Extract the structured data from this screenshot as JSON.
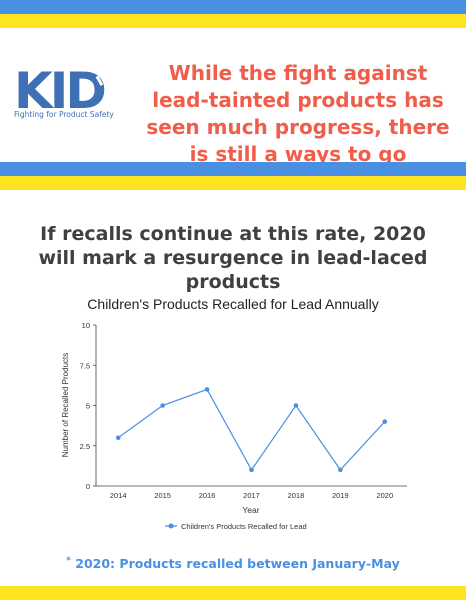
{
  "header": {
    "logo_text": "KID",
    "logo_tagline": "Fighting for Product Safety",
    "headline": "While the fight against lead-tainted products has seen much progress, there is still a ways to go"
  },
  "subheading": "If recalls continue at this rate, 2020 will mark a resurgence in lead-laced products",
  "colors": {
    "blue_band": "#4a90e2",
    "yellow_band": "#fce520",
    "headline": "#f05d4a",
    "series": "#4a90e2"
  },
  "chart_data": {
    "type": "line",
    "title": "Children's Products Recalled for Lead Annually",
    "xlabel": "Year",
    "ylabel": "Number of Recalled Products",
    "x": [
      "2014",
      "2015",
      "2016",
      "2017",
      "2018",
      "2019",
      "2020"
    ],
    "series": [
      {
        "name": "Children's Products Recalled for Lead",
        "values": [
          3,
          5,
          6,
          1,
          5,
          1,
          4
        ]
      }
    ],
    "ylim": [
      0,
      10
    ],
    "yticks": [
      "0",
      "2.5",
      "5",
      "7.5",
      "10"
    ],
    "grid": false,
    "legend": "bottom"
  },
  "footnote": {
    "marker": "*",
    "text": "2020: Products recalled between January-May"
  }
}
